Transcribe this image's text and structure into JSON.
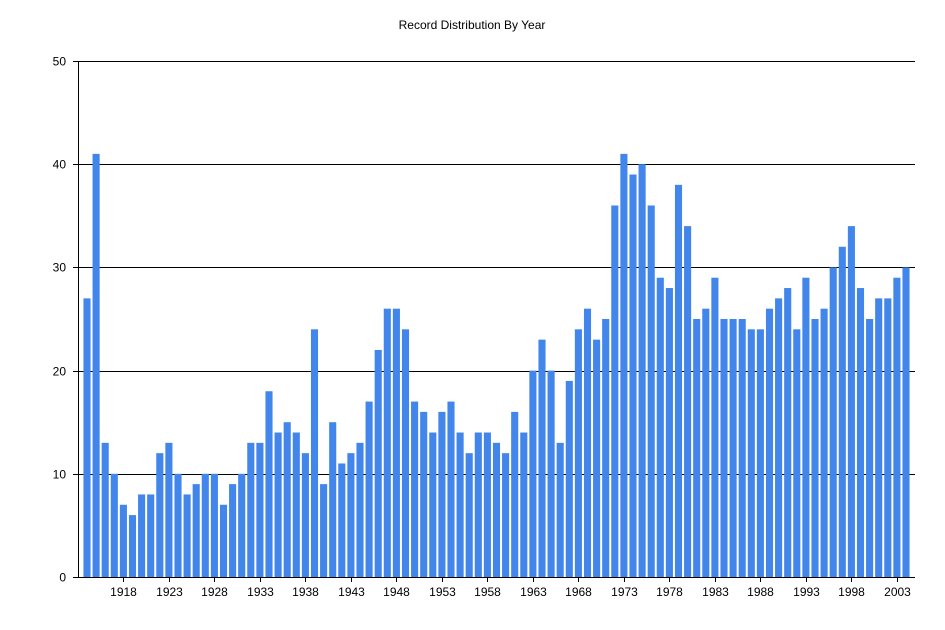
{
  "colors": {
    "bar": "#4286EC",
    "axis": "#000000",
    "grid": "#000000",
    "background": "#FFFFFF"
  },
  "chart_data": {
    "type": "bar",
    "title": "Record Distribution By Year",
    "xlabel": "",
    "ylabel": "",
    "ylim": [
      0,
      50
    ],
    "y_ticks": [
      0,
      10,
      20,
      30,
      40,
      50
    ],
    "grid": "horizontal",
    "legend": "none",
    "x_tick_labels": [
      "1918",
      "1923",
      "1928",
      "1933",
      "1938",
      "1943",
      "1948",
      "1953",
      "1958",
      "1963",
      "1968",
      "1973",
      "1978",
      "1983",
      "1988",
      "1993",
      "1998",
      "2003"
    ],
    "categories": [
      "1914",
      "1915",
      "1916",
      "1917",
      "1918",
      "1919",
      "1920",
      "1921",
      "1922",
      "1923",
      "1924",
      "1925",
      "1926",
      "1927",
      "1928",
      "1929",
      "1930",
      "1931",
      "1932",
      "1933",
      "1934",
      "1935",
      "1936",
      "1937",
      "1938",
      "1939",
      "1940",
      "1941",
      "1942",
      "1943",
      "1944",
      "1945",
      "1946",
      "1947",
      "1948",
      "1949",
      "1950",
      "1951",
      "1952",
      "1953",
      "1954",
      "1955",
      "1956",
      "1957",
      "1958",
      "1959",
      "1960",
      "1961",
      "1962",
      "1963",
      "1964",
      "1965",
      "1966",
      "1967",
      "1968",
      "1969",
      "1970",
      "1971",
      "1972",
      "1973",
      "1974",
      "1975",
      "1976",
      "1977",
      "1978",
      "1979",
      "1980",
      "1981",
      "1982",
      "1983",
      "1984",
      "1985",
      "1986",
      "1987",
      "1988",
      "1989",
      "1990",
      "1991",
      "1992",
      "1993",
      "1994",
      "1995",
      "1996",
      "1997",
      "1998",
      "1999",
      "2000",
      "2001",
      "2002",
      "2003",
      "2004"
    ],
    "values": [
      27,
      41,
      13,
      10,
      7,
      6,
      8,
      8,
      12,
      13,
      10,
      8,
      9,
      10,
      10,
      7,
      9,
      10,
      13,
      13,
      18,
      14,
      15,
      14,
      12,
      24,
      9,
      15,
      11,
      12,
      13,
      17,
      22,
      26,
      26,
      24,
      17,
      16,
      14,
      16,
      17,
      14,
      12,
      14,
      14,
      13,
      12,
      16,
      14,
      20,
      23,
      20,
      13,
      19,
      24,
      26,
      23,
      25,
      36,
      41,
      39,
      40,
      36,
      29,
      28,
      38,
      34,
      25,
      26,
      29,
      25,
      25,
      25,
      24,
      24,
      26,
      27,
      28,
      24,
      29,
      25,
      26,
      30,
      32,
      34,
      28,
      25,
      27,
      27,
      29,
      30
    ]
  }
}
